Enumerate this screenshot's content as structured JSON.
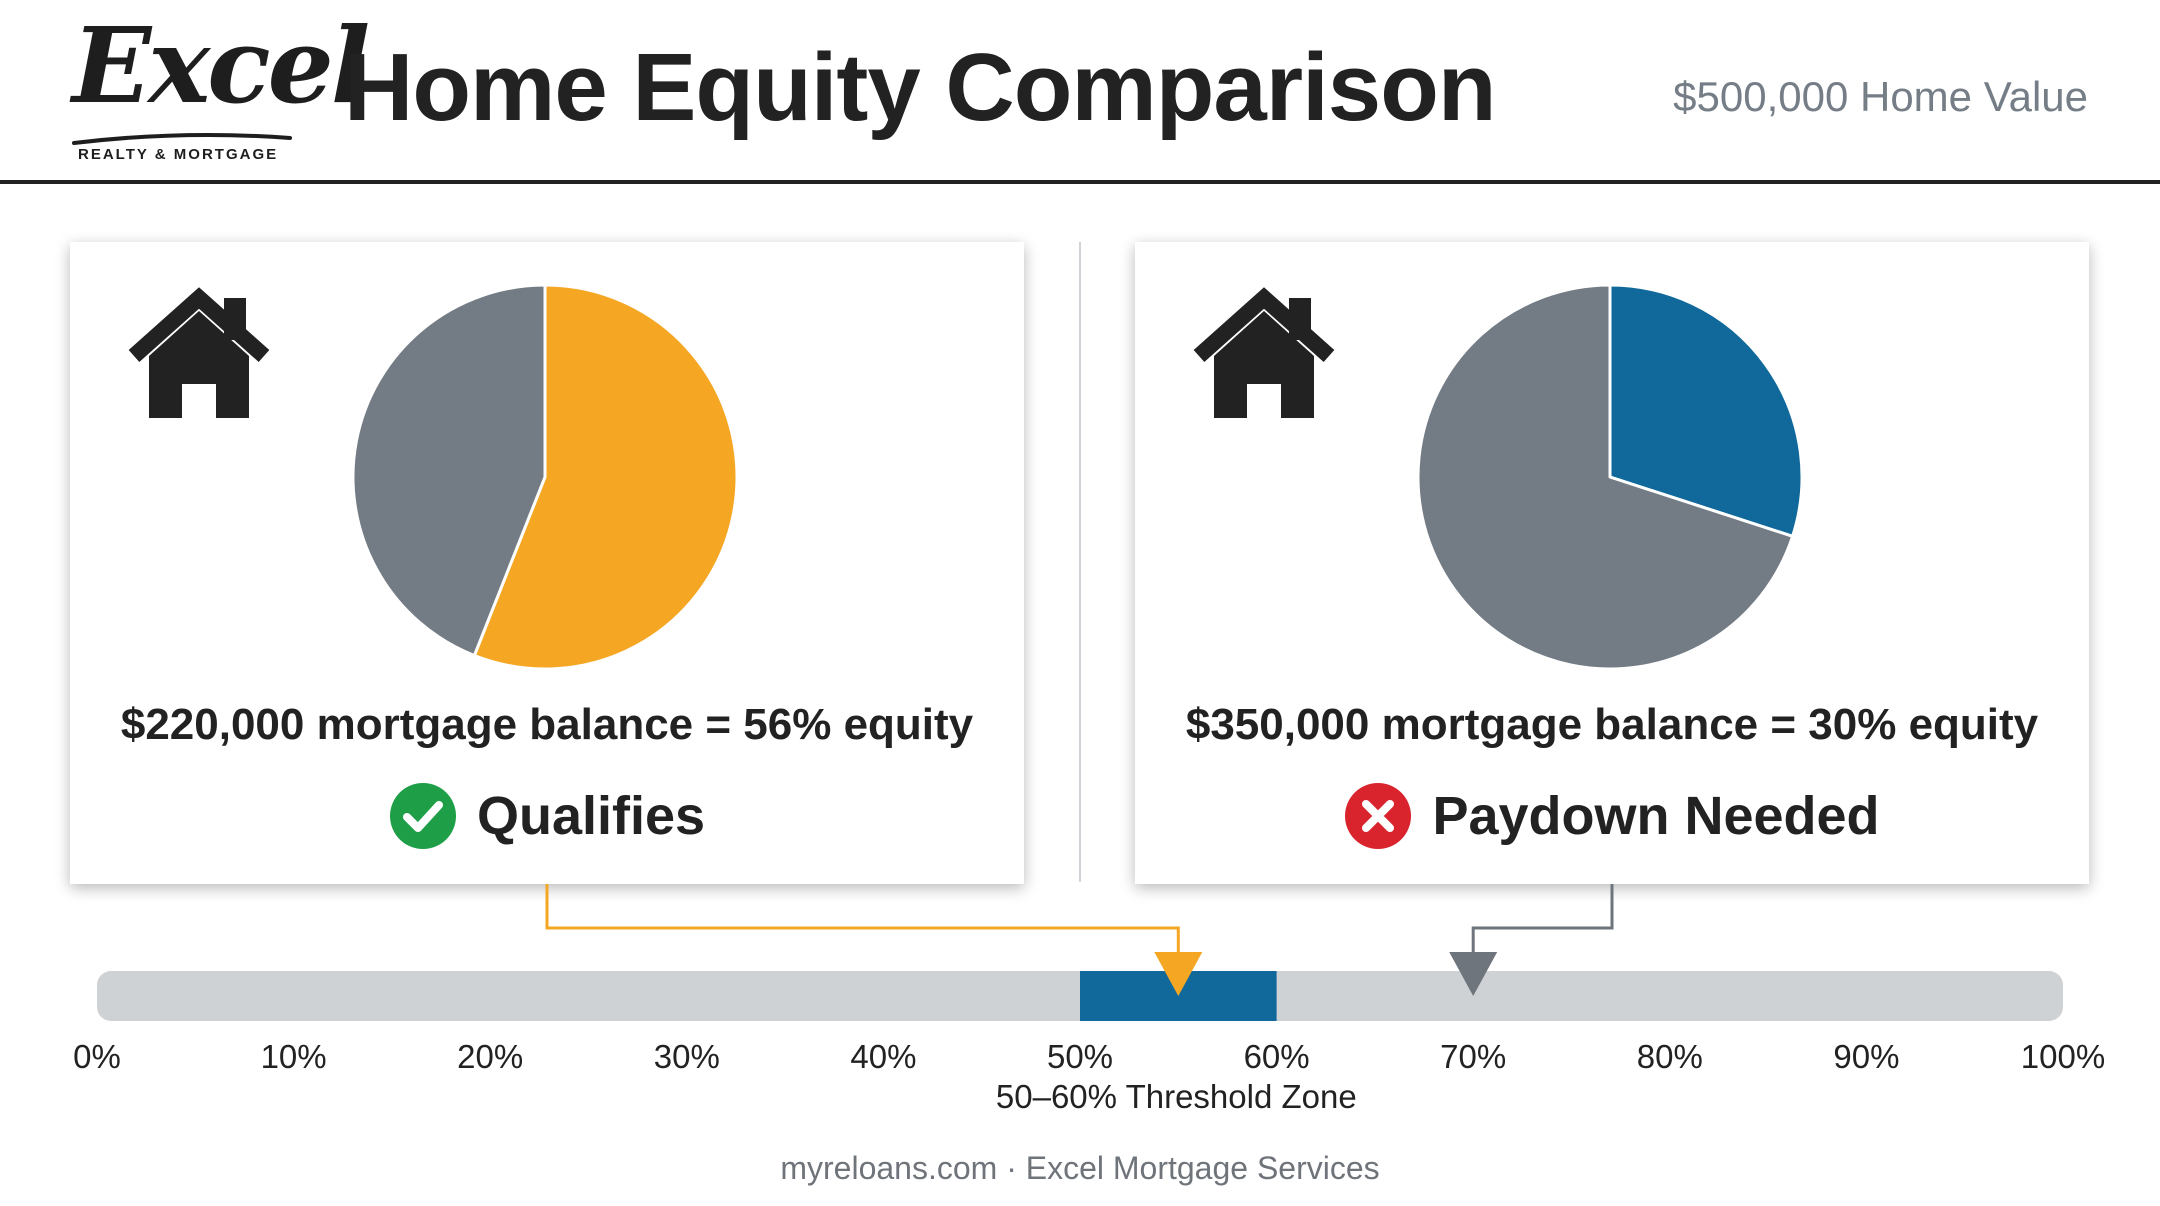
{
  "logo": {
    "script": "Excel",
    "sub": "REALTY & MORTGAGE"
  },
  "header": {
    "title": "Home Equity Comparison",
    "home_value": "$500,000 Home Value"
  },
  "colors": {
    "qualify_accent": "#f5a623",
    "paydown_accent": "#11699b",
    "mortgage_gray": "#737b85",
    "scale_track": "#cfd2d5",
    "zone": "#11699b",
    "pointer_gray": "#6e757d",
    "check_green": "#1e9e47",
    "cross_red": "#d9242e"
  },
  "chart_data": [
    {
      "type": "pie",
      "slices": [
        {
          "label": "Equity",
          "value": 56,
          "color": "#f5a623"
        },
        {
          "label": "Mortgage balance",
          "value": 44,
          "color": "#737b85"
        }
      ],
      "caption": "$220,000 mortgage balance = 56% equity",
      "status": {
        "icon": "check-circle-icon",
        "label": "Qualifies"
      }
    },
    {
      "type": "pie",
      "slices": [
        {
          "label": "Equity",
          "value": 30,
          "color": "#11699b"
        },
        {
          "label": "Mortgage balance",
          "value": 70,
          "color": "#737b85"
        }
      ],
      "caption": "$350,000 mortgage balance = 30% equity",
      "status": {
        "icon": "x-circle-icon",
        "label": "Paydown Needed"
      }
    }
  ],
  "scale": {
    "min": 0,
    "max": 100,
    "ticks": [
      "0%",
      "10%",
      "20%",
      "30%",
      "40%",
      "50%",
      "60%",
      "70%",
      "80%",
      "90%",
      "100%"
    ],
    "zone": {
      "from": 50,
      "to": 60,
      "label": "50–60% Threshold Zone"
    },
    "markers": [
      {
        "value": 55,
        "color": "#f5a623"
      },
      {
        "value": 70,
        "color": "#6e757d"
      }
    ]
  },
  "footer": "myreloans.com · Excel Mortgage Services"
}
